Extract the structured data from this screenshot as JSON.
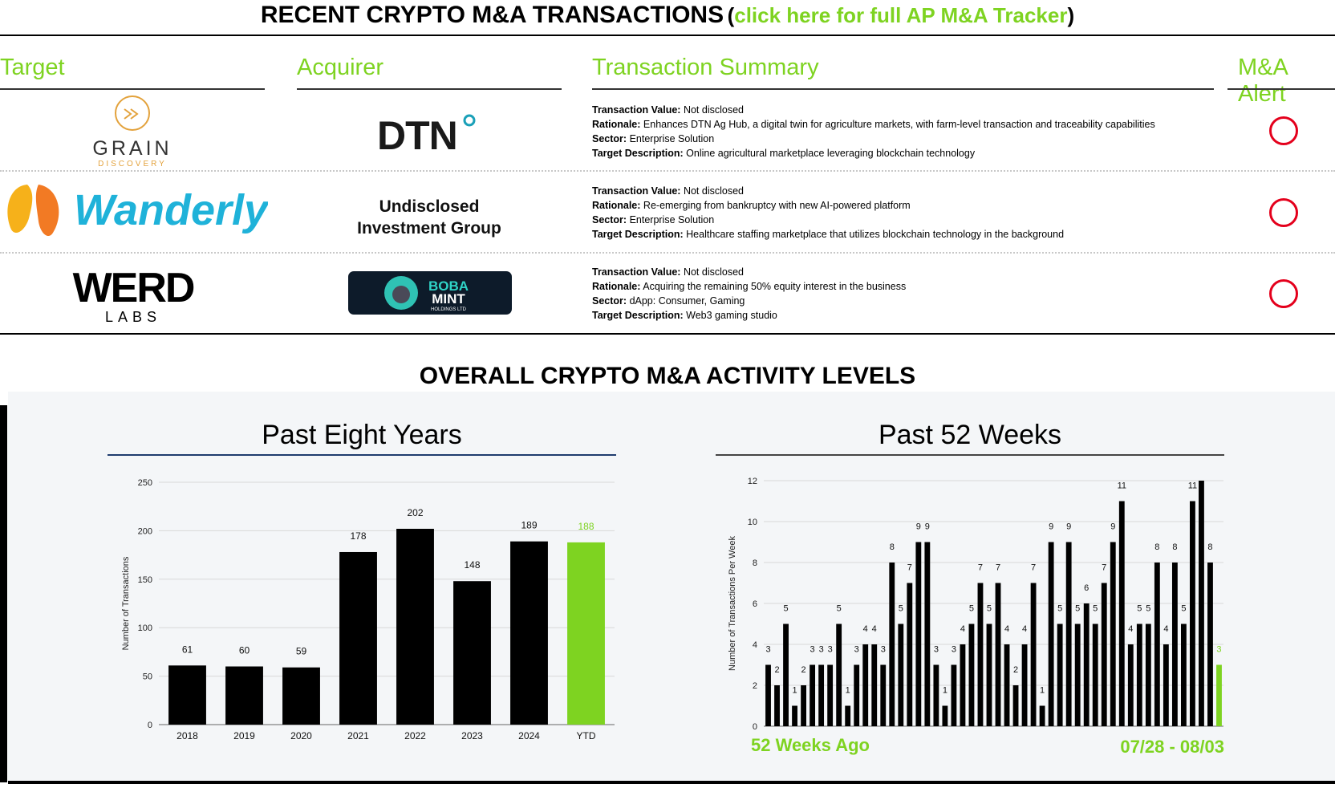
{
  "header": {
    "title": "RECENT CRYPTO M&A TRANSACTIONS",
    "paren_open": "(",
    "link_text": "click here for full AP M&A Tracker",
    "paren_close": ")"
  },
  "columns": {
    "target": "Target",
    "acquirer": "Acquirer",
    "summary": "Transaction Summary",
    "alert": "M&A Alert"
  },
  "labels": {
    "value": "Transaction Value:",
    "rationale": "Rationale:",
    "sector": "Sector:",
    "description": "Target Description:"
  },
  "transactions": [
    {
      "target_logo": {
        "name": "GRAIN",
        "sub": "DISCOVERY"
      },
      "acquirer_logo": {
        "name": "DTN"
      },
      "value": "Not disclosed",
      "rationale": "Enhances DTN Ag Hub, a digital twin for agriculture markets, with farm-level transaction and traceability capabilities",
      "sector": "Enterprise Solution",
      "description": "Online agricultural marketplace leveraging blockchain technology"
    },
    {
      "target_logo": {
        "name": "Wanderly"
      },
      "acquirer_text": [
        "Undisclosed",
        "Investment Group"
      ],
      "value": "Not disclosed",
      "rationale": "Re-emerging from bankruptcy with new AI-powered platform",
      "sector": "Enterprise Solution",
      "description": "Healthcare staffing marketplace that utilizes blockchain technology in the background"
    },
    {
      "target_logo": {
        "name": "WERD",
        "sub": "LABS"
      },
      "acquirer_logo": {
        "name": "BOBA",
        "name2": "MINT",
        "sub": "HOLDINGS LTD"
      },
      "value": "Not disclosed",
      "rationale": "Acquiring the remaining 50% equity interest in the business",
      "sector": "dApp: Consumer, Gaming",
      "description": "Web3 gaming studio"
    }
  ],
  "section_title": "OVERALL CRYPTO M&A ACTIVITY LEVELS",
  "colors": {
    "accent": "#7ed321",
    "bar": "#000000",
    "alert": "#e4001c",
    "title_rule_left": "#1f3c6e"
  },
  "chart_data": [
    {
      "type": "bar",
      "title": "Past Eight Years",
      "categories": [
        "2018",
        "2019",
        "2020",
        "2021",
        "2022",
        "2023",
        "2024",
        "YTD"
      ],
      "values": [
        61,
        60,
        59,
        178,
        202,
        148,
        189,
        188
      ],
      "highlight_index": 7,
      "xlabel": "",
      "ylabel": "Number of Transactions",
      "ylim": [
        0,
        250
      ],
      "yticks": [
        0,
        50,
        100,
        150,
        200,
        250
      ],
      "grid": true
    },
    {
      "type": "bar",
      "title": "Past 52 Weeks",
      "values": [
        3,
        2,
        5,
        1,
        2,
        3,
        3,
        3,
        5,
        1,
        3,
        4,
        4,
        3,
        8,
        5,
        7,
        9,
        9,
        3,
        1,
        3,
        4,
        5,
        7,
        5,
        7,
        4,
        2,
        4,
        7,
        1,
        9,
        5,
        9,
        5,
        6,
        5,
        7,
        9,
        11,
        4,
        5,
        5,
        8,
        4,
        8,
        5,
        11,
        12,
        8,
        3
      ],
      "highlight_index": 51,
      "xlabel": "",
      "ylabel": "Number of Transactions Per Week",
      "ylim": [
        0,
        12
      ],
      "yticks": [
        0,
        2,
        4,
        6,
        8,
        10,
        12
      ],
      "grid": true,
      "start_label": "52 Weeks Ago",
      "end_label": "07/28 - 08/03"
    }
  ]
}
